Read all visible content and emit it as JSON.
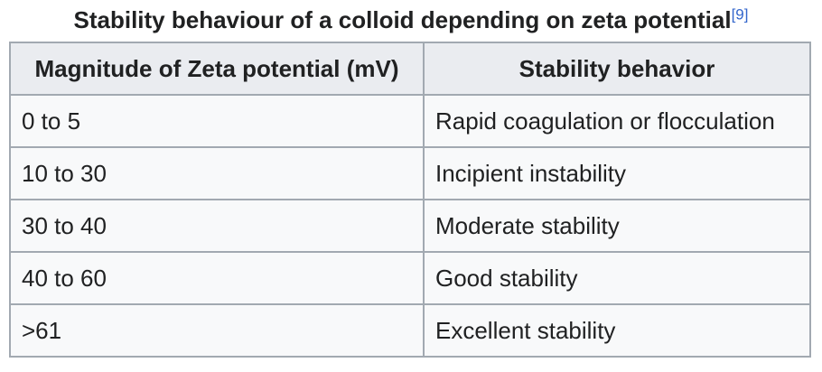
{
  "caption": {
    "title": "Stability behaviour of a colloid depending on zeta potential",
    "reference": "[9]"
  },
  "table": {
    "headers": [
      "Magnitude of Zeta potential (mV)",
      "Stability behavior"
    ],
    "rows": [
      [
        "0 to 5",
        "Rapid coagulation or flocculation"
      ],
      [
        "10 to 30",
        "Incipient instability"
      ],
      [
        "30 to 40",
        "Moderate stability"
      ],
      [
        "40 to 60",
        "Good stability"
      ],
      [
        ">61",
        "Excellent stability"
      ]
    ]
  },
  "colors": {
    "header_bg": "#eaecf0",
    "cell_bg": "#f8f9fa",
    "border": "#a2a9b1",
    "link": "#3366cc",
    "text": "#202122"
  }
}
